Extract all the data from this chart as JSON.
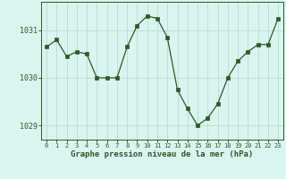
{
  "x": [
    0,
    1,
    2,
    3,
    4,
    5,
    6,
    7,
    8,
    9,
    10,
    11,
    12,
    13,
    14,
    15,
    16,
    17,
    18,
    19,
    20,
    21,
    22,
    23
  ],
  "y": [
    1030.65,
    1030.8,
    1030.45,
    1030.55,
    1030.5,
    1030.0,
    1030.0,
    1030.0,
    1030.65,
    1031.1,
    1031.3,
    1031.25,
    1030.85,
    1029.75,
    1029.35,
    1029.0,
    1029.15,
    1029.45,
    1030.0,
    1030.35,
    1030.55,
    1030.7,
    1030.7,
    1031.25
  ],
  "line_color": "#2d5a27",
  "marker_color": "#2d5a27",
  "bg_color": "#d8f5f0",
  "grid_color": "#b8ddd5",
  "axis_label_color": "#2d5a27",
  "xlabel": "Graphe pression niveau de la mer (hPa)",
  "ylim": [
    1028.7,
    1031.6
  ],
  "yticks": [
    1029,
    1030,
    1031
  ],
  "xticks": [
    0,
    1,
    2,
    3,
    4,
    5,
    6,
    7,
    8,
    9,
    10,
    11,
    12,
    13,
    14,
    15,
    16,
    17,
    18,
    19,
    20,
    21,
    22,
    23
  ]
}
